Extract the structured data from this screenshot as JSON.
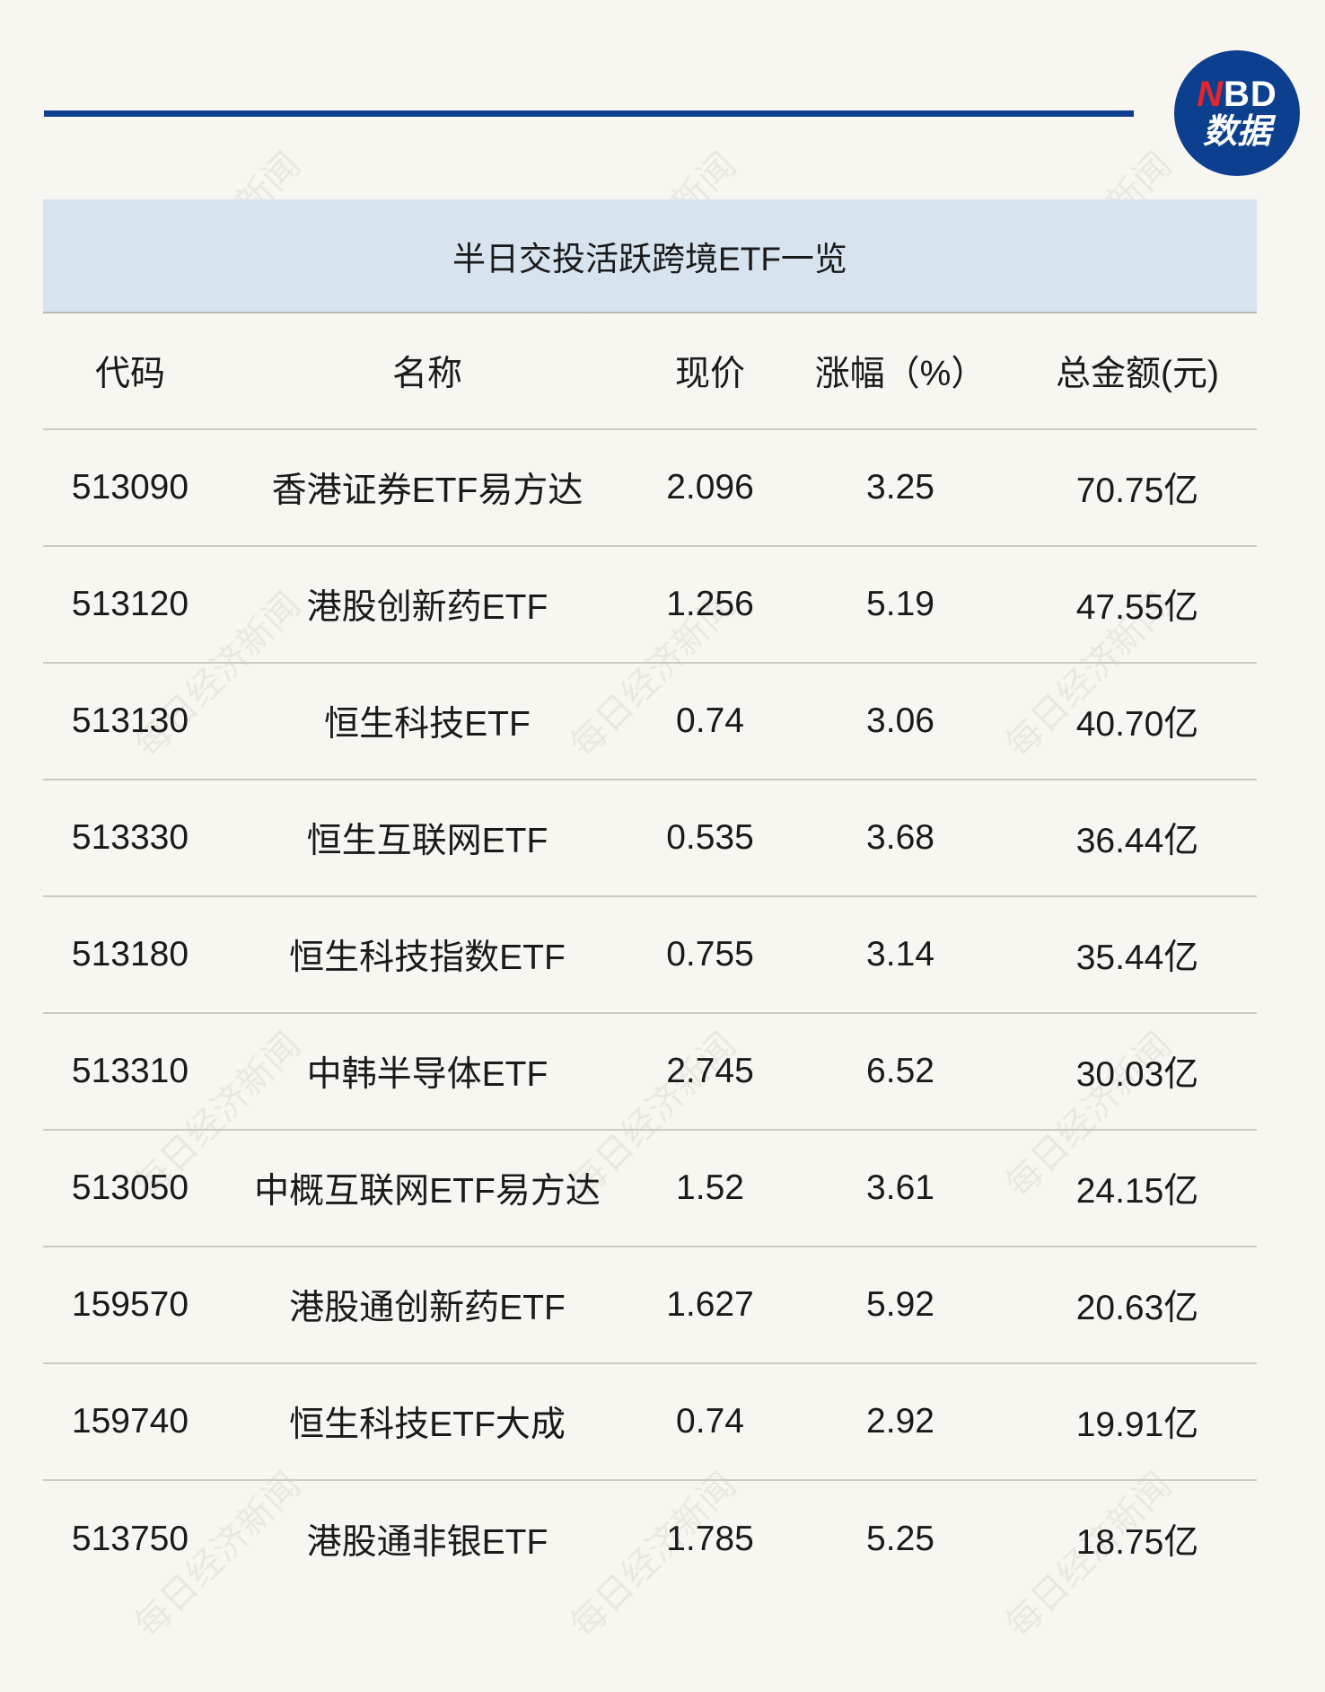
{
  "logo": {
    "text_red": "N",
    "text_rest": "BD",
    "text_cn": "数据"
  },
  "watermark": "每日经济新闻",
  "title": "半日交投活跃跨境ETF一览",
  "headers": [
    "代码",
    "名称",
    "现价",
    "涨幅（%）",
    "总金额(元)"
  ],
  "rows": [
    [
      "513090",
      "香港证券ETF易方达",
      "2.096",
      "3.25",
      "70.75亿"
    ],
    [
      "513120",
      "港股创新药ETF",
      "1.256",
      "5.19",
      "47.55亿"
    ],
    [
      "513130",
      "恒生科技ETF",
      "0.74",
      "3.06",
      "40.70亿"
    ],
    [
      "513330",
      "恒生互联网ETF",
      "0.535",
      "3.68",
      "36.44亿"
    ],
    [
      "513180",
      "恒生科技指数ETF",
      "0.755",
      "3.14",
      "35.44亿"
    ],
    [
      "513310",
      "中韩半导体ETF",
      "2.745",
      "6.52",
      "30.03亿"
    ],
    [
      "513050",
      "中概互联网ETF易方达",
      "1.52",
      "3.61",
      "24.15亿"
    ],
    [
      "159570",
      "港股通创新药ETF",
      "1.627",
      "5.92",
      "20.63亿"
    ],
    [
      "159740",
      "恒生科技ETF大成",
      "0.74",
      "2.92",
      "19.91亿"
    ],
    [
      "513750",
      "港股通非银ETF",
      "1.785",
      "5.25",
      "18.75亿"
    ]
  ]
}
